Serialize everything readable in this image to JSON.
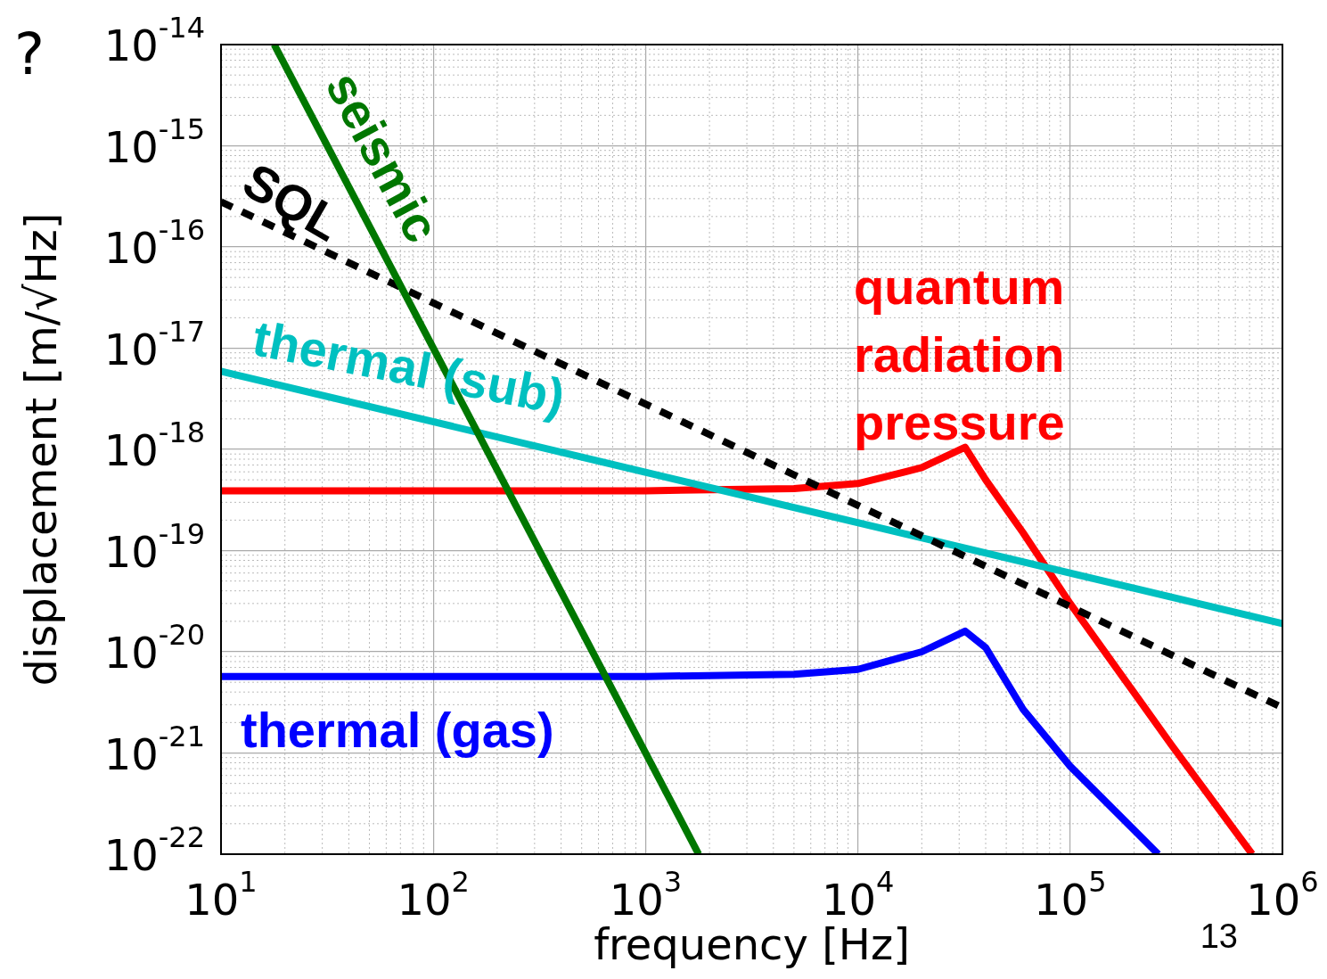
{
  "chart_data": {
    "type": "line",
    "xlabel": "frequency [Hz]",
    "ylabel": "displacement [m/√Hz]",
    "log": "xy",
    "grid": true,
    "legend": false,
    "marker": "none",
    "xlim": [
      10,
      1000000
    ],
    "ylim": [
      1e-22,
      1e-14
    ],
    "xticks": [
      {
        "value": 10,
        "label": "10$^{1}$"
      },
      {
        "value": 100,
        "label": "10$^{2}$"
      },
      {
        "value": 1000,
        "label": "10$^{3}$"
      },
      {
        "value": 10000,
        "label": "10$^{4}$"
      },
      {
        "value": 100000,
        "label": "10$^{5}$"
      },
      {
        "value": 1000000,
        "label": "10$^{6}$"
      }
    ],
    "yticks": [
      {
        "value": 1e-22,
        "label": "10$^{-22}$"
      },
      {
        "value": 1e-21,
        "label": "10$^{-21}$"
      },
      {
        "value": 1e-20,
        "label": "10$^{-20}$"
      },
      {
        "value": 1e-19,
        "label": "10$^{-19}$"
      },
      {
        "value": 1e-18,
        "label": "10$^{-18}$"
      },
      {
        "value": 1e-17,
        "label": "10$^{-17}$"
      },
      {
        "value": 1e-16,
        "label": "10$^{-16}$"
      },
      {
        "value": 1e-15,
        "label": "10$^{-15}$"
      },
      {
        "value": 1e-14,
        "label": "10$^{-14}$"
      }
    ],
    "series": [
      {
        "name": "seismic",
        "color": "#007700",
        "x": [
          17.8,
          1778
        ],
        "values": [
          1e-14,
          1e-22
        ]
      },
      {
        "name": "SQL",
        "color": "#000000",
        "line_style": "dashed",
        "x": [
          10,
          1000000
        ],
        "values": [
          2.8e-16,
          2.8e-21
        ]
      },
      {
        "name": "thermal (sub)",
        "color": "#00c0c0",
        "x": [
          10,
          1000000
        ],
        "values": [
          5.9e-18,
          1.9e-20
        ]
      },
      {
        "name": "quantum radiation pressure",
        "color": "#ff0000",
        "x": [
          10,
          1000,
          5000,
          10000,
          20000,
          32000,
          40000,
          60000,
          100000,
          300000,
          720000
        ],
        "values": [
          3.9e-19,
          3.9e-19,
          4.1e-19,
          4.6e-19,
          6.6e-19,
          1.05e-18,
          5e-19,
          1.5e-19,
          3e-20,
          1.2e-21,
          1e-22
        ]
      },
      {
        "name": "thermal (gas)",
        "color": "#0000ff",
        "x": [
          10,
          1000,
          5000,
          10000,
          20000,
          32000,
          40000,
          60000,
          100000,
          260000
        ],
        "values": [
          5.7e-21,
          5.7e-21,
          6e-21,
          6.7e-21,
          1e-20,
          1.6e-20,
          1.1e-20,
          2.7e-21,
          7.4e-22,
          1e-22
        ]
      }
    ],
    "annotations": [
      "?",
      "13"
    ]
  }
}
